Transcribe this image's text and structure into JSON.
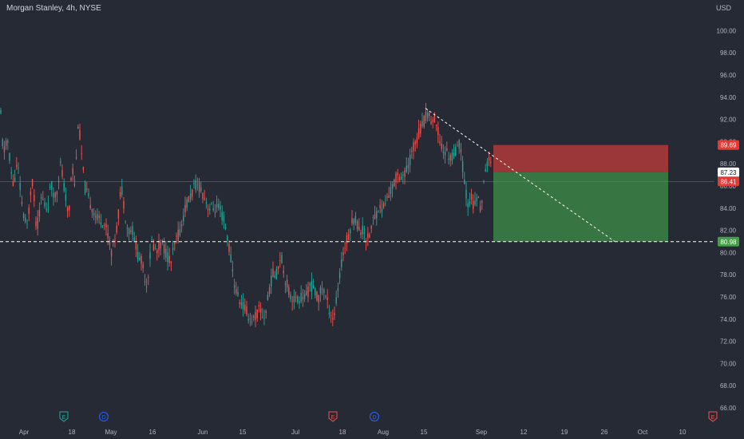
{
  "header": {
    "symbol_title": "Morgan Stanley, 4h, NYSE",
    "currency": "USD"
  },
  "colors": {
    "background": "#262a35",
    "up": "#26a69a",
    "down": "#ef5350",
    "stop_zone": "#b03a3a",
    "target_zone": "#3a7d45",
    "price_tag": "#e53935",
    "current_tag": "#ffffff",
    "target_tag": "#43a047"
  },
  "chart_data": {
    "type": "candlestick",
    "interval": "4h",
    "y_axis": {
      "min": 65,
      "max": 101,
      "ticks": [
        "66.00",
        "68.00",
        "70.00",
        "72.00",
        "74.00",
        "76.00",
        "78.00",
        "80.00",
        "82.00",
        "84.00",
        "86.00",
        "88.00",
        "90.00",
        "92.00",
        "94.00",
        "96.00",
        "98.00",
        "100.00"
      ]
    },
    "x_axis": {
      "labels": [
        "Apr",
        "18",
        "May",
        "16",
        "Jun",
        "15",
        "Jul",
        "18",
        "Aug",
        "15",
        "Sep",
        "12",
        "19",
        "26",
        "Oct",
        "10"
      ]
    },
    "price_path": [
      [
        0,
        93.5
      ],
      [
        4,
        89
      ],
      [
        10,
        90
      ],
      [
        16,
        86
      ],
      [
        22,
        88
      ],
      [
        28,
        84
      ],
      [
        34,
        82
      ],
      [
        40,
        87
      ],
      [
        46,
        82
      ],
      [
        52,
        85
      ],
      [
        58,
        84
      ],
      [
        64,
        86
      ],
      [
        70,
        85
      ],
      [
        76,
        88
      ],
      [
        80,
        86
      ],
      [
        86,
        83
      ],
      [
        90,
        88
      ],
      [
        94,
        86
      ],
      [
        98,
        92
      ],
      [
        102,
        89
      ],
      [
        106,
        86
      ],
      [
        110,
        85
      ],
      [
        116,
        84
      ],
      [
        122,
        83
      ],
      [
        128,
        83
      ],
      [
        134,
        82
      ],
      [
        140,
        80
      ],
      [
        146,
        82
      ],
      [
        152,
        86
      ],
      [
        156,
        84
      ],
      [
        160,
        82
      ],
      [
        166,
        82
      ],
      [
        172,
        80
      ],
      [
        178,
        79
      ],
      [
        184,
        77
      ],
      [
        190,
        81
      ],
      [
        196,
        80
      ],
      [
        202,
        81
      ],
      [
        208,
        80
      ],
      [
        214,
        79
      ],
      [
        220,
        81
      ],
      [
        226,
        82
      ],
      [
        232,
        84
      ],
      [
        238,
        85
      ],
      [
        244,
        86
      ],
      [
        250,
        86
      ],
      [
        256,
        85
      ],
      [
        262,
        84
      ],
      [
        268,
        84
      ],
      [
        274,
        84
      ],
      [
        280,
        83
      ],
      [
        286,
        81
      ],
      [
        290,
        79
      ],
      [
        294,
        77
      ],
      [
        298,
        76
      ],
      [
        302,
        75.5
      ],
      [
        306,
        75
      ],
      [
        310,
        74.5
      ],
      [
        314,
        74
      ],
      [
        318,
        74
      ],
      [
        322,
        74.5
      ],
      [
        326,
        75
      ],
      [
        330,
        74
      ],
      [
        334,
        75
      ],
      [
        338,
        77
      ],
      [
        342,
        78
      ],
      [
        346,
        78
      ],
      [
        352,
        80
      ],
      [
        356,
        78
      ],
      [
        360,
        77
      ],
      [
        364,
        76
      ],
      [
        368,
        76
      ],
      [
        372,
        75.5
      ],
      [
        376,
        76
      ],
      [
        380,
        76
      ],
      [
        384,
        76
      ],
      [
        388,
        77
      ],
      [
        392,
        77
      ],
      [
        396,
        76
      ],
      [
        400,
        76
      ],
      [
        404,
        77
      ],
      [
        408,
        76
      ],
      [
        412,
        75
      ],
      [
        418,
        74
      ],
      [
        422,
        76
      ],
      [
        426,
        78
      ],
      [
        430,
        80
      ],
      [
        434,
        81
      ],
      [
        438,
        82
      ],
      [
        442,
        83
      ],
      [
        446,
        83
      ],
      [
        450,
        82
      ],
      [
        456,
        82
      ],
      [
        460,
        81
      ],
      [
        464,
        82
      ],
      [
        468,
        83
      ],
      [
        474,
        84
      ],
      [
        480,
        84
      ],
      [
        486,
        85
      ],
      [
        492,
        86
      ],
      [
        498,
        87
      ],
      [
        504,
        87
      ],
      [
        508,
        87
      ],
      [
        512,
        88
      ],
      [
        516,
        89
      ],
      [
        520,
        90
      ],
      [
        526,
        91
      ],
      [
        532,
        92
      ],
      [
        536,
        92.5
      ],
      [
        540,
        92
      ],
      [
        544,
        92
      ],
      [
        548,
        91
      ],
      [
        552,
        90
      ],
      [
        556,
        89
      ],
      [
        560,
        89
      ],
      [
        564,
        88.5
      ],
      [
        568,
        89
      ],
      [
        572,
        89
      ],
      [
        576,
        90
      ],
      [
        578,
        89
      ],
      [
        582,
        86
      ],
      [
        586,
        84.5
      ],
      [
        590,
        85
      ],
      [
        594,
        84
      ],
      [
        598,
        85
      ],
      [
        602,
        84
      ],
      [
        606,
        86
      ],
      [
        610,
        88
      ],
      [
        614,
        89
      ],
      [
        616,
        86.4
      ]
    ],
    "current_price": 87.23,
    "last_price": 86.41,
    "horizontal_level": 80.98,
    "trendline": {
      "start": {
        "x": 533,
        "y": 93.0
      },
      "end": {
        "x": 770,
        "y": 81.0
      }
    },
    "position": {
      "type": "short",
      "stop": 89.69,
      "entry": 87.23,
      "target": 80.98
    },
    "price_labels": {
      "stop": "89.69",
      "current": "87.23",
      "last": "86.41",
      "target": "80.98"
    },
    "event_markers": [
      {
        "symbol": "E",
        "kind": "earnings",
        "color": "#26a69a"
      },
      {
        "symbol": "D",
        "kind": "dividend",
        "color": "#2962ff"
      },
      {
        "symbol": "E",
        "kind": "earnings",
        "color": "#ef5350"
      },
      {
        "symbol": "D",
        "kind": "dividend",
        "color": "#2962ff"
      },
      {
        "symbol": "E",
        "kind": "earnings",
        "color": "#ef5350"
      }
    ]
  }
}
